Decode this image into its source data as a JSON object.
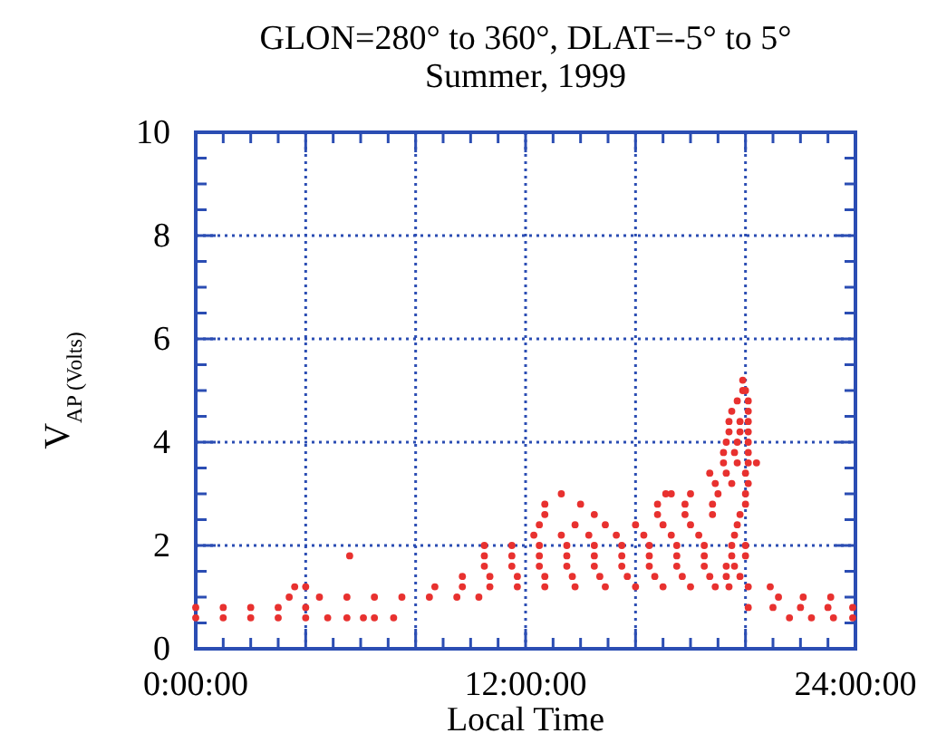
{
  "chart_data": {
    "type": "scatter",
    "title": "GLON=280° to 360°, DLAT=-5° to 5°",
    "subtitle": "Summer, 1999",
    "xlabel": "Local Time",
    "ylabel": "V$_{AP (Volts)}$",
    "xlim": [
      0,
      24
    ],
    "xticks": [
      {
        "value": 0,
        "label": "0:00:00"
      },
      {
        "value": 4,
        "label": null
      },
      {
        "value": 8,
        "label": null
      },
      {
        "value": 12,
        "label": "12:00:00"
      },
      {
        "value": 16,
        "label": null
      },
      {
        "value": 20,
        "label": null
      },
      {
        "value": 24,
        "label": "24:00:00"
      }
    ],
    "ylim": [
      0,
      10
    ],
    "yticks": [
      0,
      2,
      4,
      6,
      8,
      10
    ],
    "grid": true,
    "marker": "circle",
    "series": [
      {
        "color": "#e8312f",
        "x": [
          0,
          1,
          2,
          3,
          4,
          4.8,
          5.5,
          6.1,
          6.5,
          7.2,
          21.6,
          22.4,
          23.2,
          23.9,
          0,
          1,
          2,
          3,
          4,
          20.1,
          21,
          22,
          23,
          23.9,
          3.4,
          4.5,
          5.5,
          6.5,
          7.5,
          8.5,
          9.5,
          10.3,
          21.2,
          22.1,
          23.1,
          3.6,
          4,
          8.7,
          9.7,
          10.7,
          11.7,
          12.7,
          13.8,
          14.9,
          16,
          17,
          18,
          18.9,
          19.4,
          20.1,
          20.9,
          9.7,
          10.7,
          11.7,
          12.7,
          13.7,
          14.7,
          15.7,
          16.7,
          17.7,
          18.7,
          19.3,
          19.8,
          10.5,
          11.5,
          12.5,
          13.5,
          14.5,
          15.5,
          16.5,
          17.5,
          18.5,
          19.3,
          19.6,
          5.6,
          10.5,
          11.5,
          12.5,
          13.5,
          14.5,
          15.5,
          16.5,
          17.5,
          18.5,
          19.5,
          20.0,
          10.5,
          11.5,
          12.5,
          13.5,
          14.5,
          15.5,
          16.5,
          17.5,
          18.5,
          19.5,
          20.0,
          12.3,
          13.3,
          14.3,
          15.3,
          16.3,
          17.3,
          18.3,
          19.6,
          12.5,
          13.8,
          14.9,
          16,
          17,
          18,
          19.7,
          12.7,
          14.5,
          16.8,
          17.8,
          18.8,
          19.8,
          12.7,
          14.0,
          16.8,
          17.8,
          18.8,
          20.0,
          13.3,
          17.1,
          17.3,
          18.0,
          19.0,
          20.0,
          18.9,
          19.5,
          20.1,
          18.7,
          19.3,
          20.0,
          19.2,
          19.7,
          20.1,
          20.4,
          19.2,
          19.6,
          20.1,
          19.3,
          19.7,
          20.1,
          19.4,
          19.8,
          20.1,
          19.4,
          19.8,
          20.1,
          19.5,
          20.1,
          19.7,
          20.1,
          19.9,
          20.0,
          19.9
        ],
        "values": [
          0.6,
          0.6,
          0.6,
          0.6,
          0.6,
          0.6,
          0.6,
          0.6,
          0.6,
          0.6,
          0.6,
          0.6,
          0.6,
          0.6,
          0.8,
          0.8,
          0.8,
          0.8,
          0.8,
          0.8,
          0.8,
          0.8,
          0.8,
          0.8,
          1.0,
          1.0,
          1.0,
          1.0,
          1.0,
          1.0,
          1.0,
          1.0,
          1.0,
          1.0,
          1.0,
          1.2,
          1.2,
          1.2,
          1.2,
          1.2,
          1.2,
          1.2,
          1.2,
          1.2,
          1.2,
          1.2,
          1.2,
          1.2,
          1.2,
          1.2,
          1.2,
          1.4,
          1.4,
          1.4,
          1.4,
          1.4,
          1.4,
          1.4,
          1.4,
          1.4,
          1.4,
          1.4,
          1.4,
          1.6,
          1.6,
          1.6,
          1.6,
          1.6,
          1.6,
          1.6,
          1.6,
          1.6,
          1.6,
          1.6,
          1.8,
          1.8,
          1.8,
          1.8,
          1.8,
          1.8,
          1.8,
          1.8,
          1.8,
          1.8,
          1.8,
          1.8,
          2.0,
          2.0,
          2.0,
          2.0,
          2.0,
          2.0,
          2.0,
          2.0,
          2.0,
          2.0,
          2.0,
          2.2,
          2.2,
          2.2,
          2.2,
          2.2,
          2.2,
          2.2,
          2.2,
          2.4,
          2.4,
          2.4,
          2.4,
          2.4,
          2.4,
          2.4,
          2.6,
          2.6,
          2.6,
          2.6,
          2.6,
          2.6,
          2.8,
          2.8,
          2.8,
          2.8,
          2.8,
          2.8,
          3.0,
          3.0,
          3.0,
          3.0,
          3.0,
          3.0,
          3.2,
          3.2,
          3.2,
          3.4,
          3.4,
          3.4,
          3.6,
          3.6,
          3.6,
          3.6,
          3.8,
          3.8,
          3.8,
          4.0,
          4.0,
          4.0,
          4.2,
          4.2,
          4.2,
          4.4,
          4.4,
          4.4,
          4.6,
          4.6,
          4.8,
          4.8,
          5.0,
          5.0,
          5.2
        ]
      }
    ]
  }
}
